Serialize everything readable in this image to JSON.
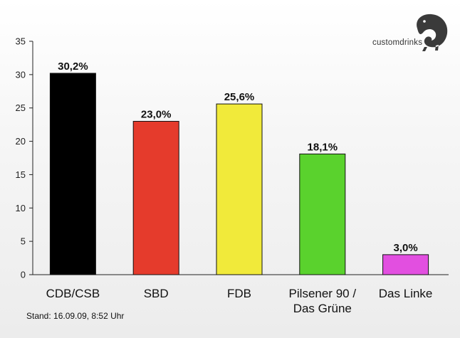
{
  "brand": {
    "name": "customdrinks",
    "logo_icon": "chameleon-icon"
  },
  "footnote": "Stand: 16.09.09, 8:52 Uhr",
  "chart_data": {
    "type": "bar",
    "title": "",
    "xlabel": "",
    "ylabel": "",
    "ylim": [
      0,
      35
    ],
    "yticks": [
      0,
      5,
      10,
      15,
      20,
      25,
      30,
      35
    ],
    "grid": false,
    "categories": [
      [
        "CDB/CSB"
      ],
      [
        "SBD"
      ],
      [
        "FDB"
      ],
      [
        "Pilsener 90 /",
        "Das Grüne"
      ],
      [
        "Das Linke"
      ]
    ],
    "values": [
      30.2,
      23.0,
      25.6,
      18.1,
      3.0
    ],
    "value_labels": [
      "30,2%",
      "23,0%",
      "25,6%",
      "18,1%",
      "3,0%"
    ],
    "colors": [
      "#000000",
      "#e53b2c",
      "#f1ea3a",
      "#5ad22d",
      "#e24fe0"
    ]
  }
}
